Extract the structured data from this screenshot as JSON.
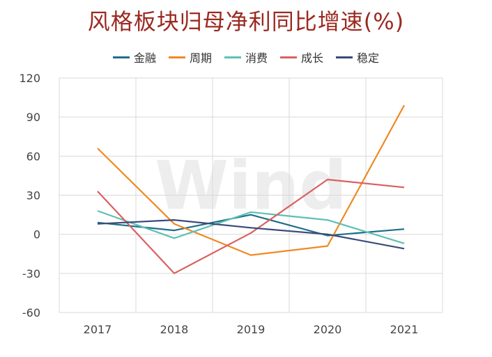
{
  "chart_data": {
    "type": "line",
    "title": "风格板块归母净利同比增速(%)",
    "categories": [
      "2017",
      "2018",
      "2019",
      "2020",
      "2021"
    ],
    "ylim": [
      -60,
      120
    ],
    "yticks": [
      "120",
      "90",
      "60",
      "30",
      "0",
      "-30",
      "-60"
    ],
    "grid": true,
    "legend_position": "top",
    "watermark": "Wind",
    "series": [
      {
        "name": "金融",
        "color": "#1f6e8c",
        "values": [
          9,
          3,
          15,
          -1,
          4
        ]
      },
      {
        "name": "周期",
        "color": "#ee8a22",
        "values": [
          66,
          8,
          -16,
          -9,
          99
        ]
      },
      {
        "name": "消费",
        "color": "#5ec0b5",
        "values": [
          18,
          -3,
          17,
          11,
          -7
        ]
      },
      {
        "name": "成长",
        "color": "#d96160",
        "values": [
          33,
          -30,
          1,
          42,
          36
        ]
      },
      {
        "name": "稳定",
        "color": "#3a4a78",
        "values": [
          8,
          11,
          5,
          0,
          -11
        ]
      }
    ]
  }
}
